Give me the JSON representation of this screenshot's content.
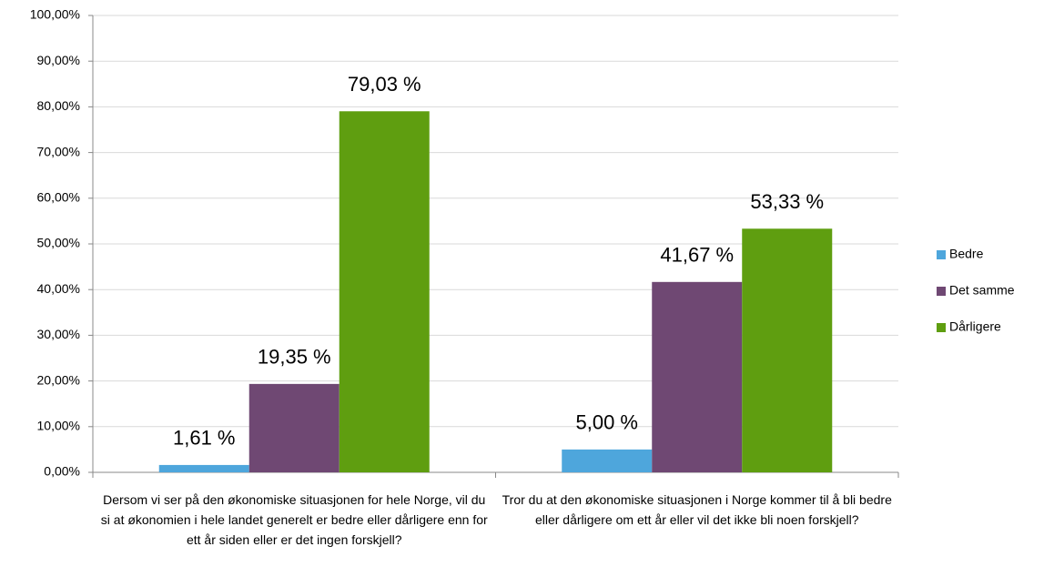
{
  "chart_data": {
    "type": "bar",
    "categories": [
      "Dersom vi ser på den økonomiske situasjonen for hele Norge, vil du si at økonomien i hele landet generelt er bedre eller dårligere enn for ett år siden eller er det ingen forskjell?",
      "Tror du at den økonomiske situasjonen i Norge kommer til å bli bedre eller dårligere om ett år eller vil det ikke bli noen forskjell?"
    ],
    "series": [
      {
        "name": "Bedre",
        "color": "#4ea6dc",
        "values": [
          1.61,
          5.0
        ],
        "value_labels": [
          "1,61 %",
          "5,00 %"
        ]
      },
      {
        "name": "Det samme",
        "color": "#6f4873",
        "values": [
          19.35,
          41.67
        ],
        "value_labels": [
          "19,35 %",
          "41,67 %"
        ]
      },
      {
        "name": "Dårligere",
        "color": "#5f9e10",
        "values": [
          79.03,
          53.33
        ],
        "value_labels": [
          "79,03 %",
          "53,33 %"
        ]
      }
    ],
    "ylim": [
      0,
      100
    ],
    "yticks": [
      {
        "value": 0,
        "label": "0,00%"
      },
      {
        "value": 10,
        "label": "10,00%"
      },
      {
        "value": 20,
        "label": "20,00%"
      },
      {
        "value": 30,
        "label": "30,00%"
      },
      {
        "value": 40,
        "label": "40,00%"
      },
      {
        "value": 50,
        "label": "50,00%"
      },
      {
        "value": 60,
        "label": "60,00%"
      },
      {
        "value": 70,
        "label": "70,00%"
      },
      {
        "value": 80,
        "label": "80,00%"
      },
      {
        "value": 90,
        "label": "90,00%"
      },
      {
        "value": 100,
        "label": "100,00%"
      }
    ],
    "grid": true,
    "legend": "right"
  }
}
